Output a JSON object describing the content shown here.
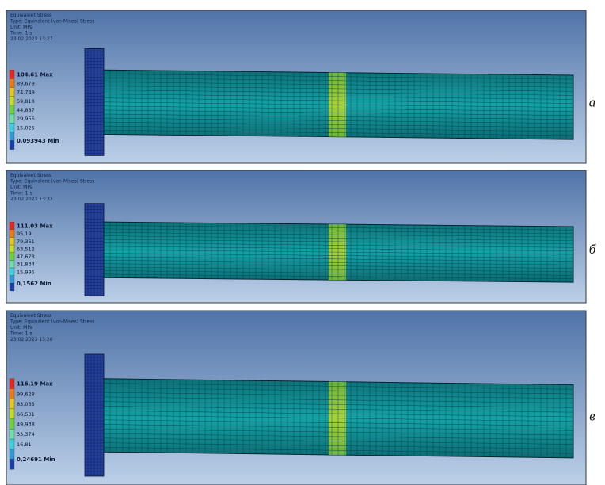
{
  "panels": [
    {
      "header": [
        "Equivalent Stress",
        "Type: Equivalent (von-Mises) Stress",
        "Unit: MPa",
        "Time: 1 s",
        "23.02.2023 13:27"
      ],
      "legend": [
        "104,61 Max",
        "89,679",
        "74,749",
        "59,818",
        "44,887",
        "29,956",
        "15,025",
        "0,093943 Min"
      ],
      "label": "а"
    },
    {
      "header": [
        "Equivalent Stress",
        "Type: Equivalent (von-Mises) Stress",
        "Unit: MPa",
        "Time: 1 s",
        "23.02.2023 13:33"
      ],
      "legend": [
        "111,03 Max",
        "95,19",
        "79,351",
        "63,512",
        "47,673",
        "31,834",
        "15,995",
        "0,1562 Min"
      ],
      "label": "б"
    },
    {
      "header": [
        "Equivalent Stress",
        "Type: Equivalent (von-Mises) Stress",
        "Unit: MPa",
        "Time: 1 s",
        "23.02.2023 13:20"
      ],
      "legend": [
        "116,19 Max",
        "99,628",
        "83,065",
        "66,501",
        "49,938",
        "33,374",
        "16,81",
        "0,24691 Min"
      ],
      "label": "в"
    }
  ]
}
